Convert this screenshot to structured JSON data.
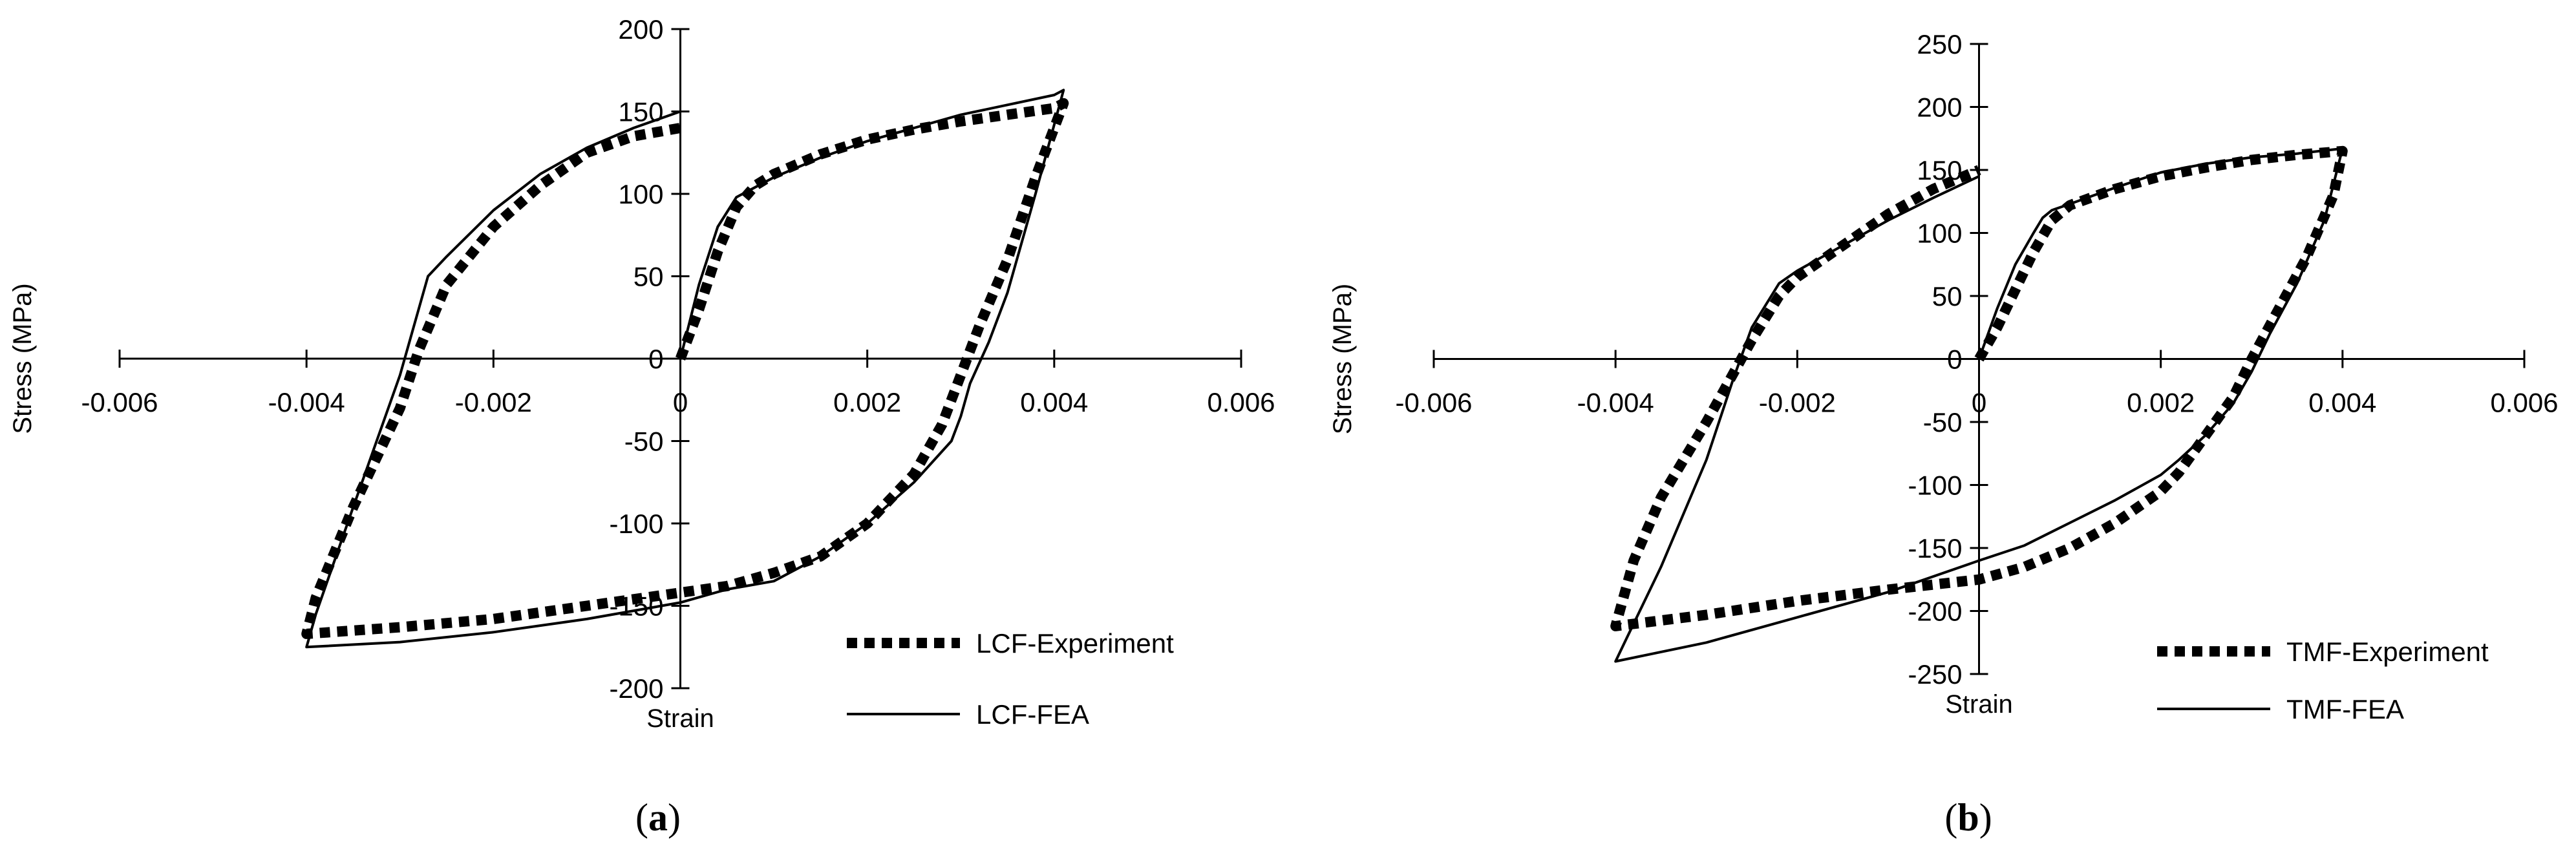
{
  "chart_data": [
    {
      "type": "line",
      "panel_label": "a",
      "xlabel": "Strain",
      "ylabel": "Stress (MPa)",
      "xlim": [
        -0.006,
        0.006
      ],
      "ylim": [
        -200,
        200
      ],
      "x_ticks": [
        "-0.006",
        "-0.004",
        "-0.002",
        "0",
        "0.002",
        "0.004",
        "0.006"
      ],
      "y_ticks": [
        "200",
        "150",
        "100",
        "50",
        "0",
        "-50",
        "-100",
        "-150",
        "-200"
      ],
      "legend": "bottom-right",
      "grid": false,
      "series": [
        {
          "name": "LCF-Experiment",
          "style": "dotted-thick",
          "points": [
            [
              0,
              0
            ],
            [
              0.0002,
              30
            ],
            [
              0.0004,
              65
            ],
            [
              0.0006,
              92
            ],
            [
              0.0008,
              105
            ],
            [
              0.001,
              112
            ],
            [
              0.0015,
              124
            ],
            [
              0.002,
              133
            ],
            [
              0.0025,
              139
            ],
            [
              0.003,
              144
            ],
            [
              0.0035,
              148
            ],
            [
              0.004,
              152
            ],
            [
              0.0041,
              155
            ],
            [
              0.0038,
              110
            ],
            [
              0.0035,
              60
            ],
            [
              0.0032,
              20
            ],
            [
              0.003,
              -10
            ],
            [
              0.0028,
              -40
            ],
            [
              0.0025,
              -70
            ],
            [
              0.002,
              -100
            ],
            [
              0.0015,
              -120
            ],
            [
              0.001,
              -130
            ],
            [
              0.0005,
              -138
            ],
            [
              0,
              -142
            ],
            [
              -0.001,
              -150
            ],
            [
              -0.002,
              -158
            ],
            [
              -0.003,
              -163
            ],
            [
              -0.004,
              -167
            ],
            [
              -0.0039,
              -145
            ],
            [
              -0.0035,
              -90
            ],
            [
              -0.003,
              -30
            ],
            [
              -0.0028,
              5
            ],
            [
              -0.0025,
              45
            ],
            [
              -0.002,
              80
            ],
            [
              -0.0015,
              105
            ],
            [
              -0.001,
              125
            ],
            [
              -0.0005,
              135
            ],
            [
              0,
              140
            ]
          ]
        },
        {
          "name": "LCF-FEA",
          "style": "solid",
          "points": [
            [
              0,
              0
            ],
            [
              0.0002,
              45
            ],
            [
              0.0004,
              80
            ],
            [
              0.0006,
              98
            ],
            [
              0.0008,
              104
            ],
            [
              0.001,
              110
            ],
            [
              0.0015,
              122
            ],
            [
              0.002,
              132
            ],
            [
              0.0025,
              140
            ],
            [
              0.003,
              148
            ],
            [
              0.0035,
              154
            ],
            [
              0.004,
              160
            ],
            [
              0.0041,
              163
            ],
            [
              0.0038,
              100
            ],
            [
              0.0035,
              40
            ],
            [
              0.0033,
              10
            ],
            [
              0.0031,
              -15
            ],
            [
              0.003,
              -35
            ],
            [
              0.0029,
              -50
            ],
            [
              0.0025,
              -75
            ],
            [
              0.002,
              -100
            ],
            [
              0.0015,
              -120
            ],
            [
              0.001,
              -135
            ],
            [
              0.0005,
              -140
            ],
            [
              0,
              -148
            ],
            [
              -0.001,
              -158
            ],
            [
              -0.002,
              -166
            ],
            [
              -0.003,
              -172
            ],
            [
              -0.004,
              -175
            ],
            [
              -0.0039,
              -155
            ],
            [
              -0.0035,
              -90
            ],
            [
              -0.003,
              -10
            ],
            [
              -0.0027,
              50
            ],
            [
              -0.0025,
              62
            ],
            [
              -0.002,
              90
            ],
            [
              -0.0015,
              112
            ],
            [
              -0.001,
              128
            ],
            [
              -0.0005,
              140
            ],
            [
              0,
              150
            ]
          ]
        }
      ]
    },
    {
      "type": "line",
      "panel_label": "b",
      "xlabel": "Strain",
      "ylabel": "Stress (MPa)",
      "xlim": [
        -0.006,
        0.006
      ],
      "ylim": [
        -250,
        250
      ],
      "x_ticks": [
        "-0.006",
        "-0.004",
        "-0.002",
        "0",
        "0.002",
        "0.004",
        "0.006"
      ],
      "y_ticks": [
        "250",
        "200",
        "150",
        "100",
        "50",
        "0",
        "-50",
        "-100",
        "-150",
        "-200",
        "-250"
      ],
      "legend": "bottom-right",
      "grid": false,
      "series": [
        {
          "name": "TMF-Experiment",
          "style": "dotted-thick",
          "points": [
            [
              0,
              0
            ],
            [
              0.0002,
              25
            ],
            [
              0.0004,
              55
            ],
            [
              0.0006,
              85
            ],
            [
              0.0008,
              110
            ],
            [
              0.001,
              122
            ],
            [
              0.0015,
              135
            ],
            [
              0.002,
              145
            ],
            [
              0.0025,
              152
            ],
            [
              0.003,
              158
            ],
            [
              0.0035,
              162
            ],
            [
              0.004,
              165
            ],
            [
              0.0039,
              130
            ],
            [
              0.0036,
              80
            ],
            [
              0.0033,
              40
            ],
            [
              0.003,
              0
            ],
            [
              0.0028,
              -30
            ],
            [
              0.0025,
              -60
            ],
            [
              0.0022,
              -90
            ],
            [
              0.002,
              -105
            ],
            [
              0.0015,
              -130
            ],
            [
              0.001,
              -150
            ],
            [
              0.0005,
              -165
            ],
            [
              0,
              -175
            ],
            [
              -0.001,
              -183
            ],
            [
              -0.002,
              -192
            ],
            [
              -0.003,
              -203
            ],
            [
              -0.004,
              -212
            ],
            [
              -0.0038,
              -160
            ],
            [
              -0.0035,
              -110
            ],
            [
              -0.003,
              -50
            ],
            [
              -0.0025,
              15
            ],
            [
              -0.0022,
              50
            ],
            [
              -0.002,
              65
            ],
            [
              -0.0015,
              90
            ],
            [
              -0.001,
              115
            ],
            [
              -0.0005,
              135
            ],
            [
              0,
              150
            ]
          ]
        },
        {
          "name": "TMF-FEA",
          "style": "solid",
          "points": [
            [
              0,
              0
            ],
            [
              0.0002,
              40
            ],
            [
              0.0004,
              75
            ],
            [
              0.0006,
              100
            ],
            [
              0.0007,
              112
            ],
            [
              0.0008,
              118
            ],
            [
              0.001,
              123
            ],
            [
              0.0015,
              136
            ],
            [
              0.002,
              148
            ],
            [
              0.0025,
              155
            ],
            [
              0.003,
              160
            ],
            [
              0.0035,
              163
            ],
            [
              0.004,
              167
            ],
            [
              0.0038,
              110
            ],
            [
              0.0035,
              60
            ],
            [
              0.0032,
              20
            ],
            [
              0.003,
              -10
            ],
            [
              0.0028,
              -35
            ],
            [
              0.0025,
              -60
            ],
            [
              0.0022,
              -80
            ],
            [
              0.002,
              -92
            ],
            [
              0.0015,
              -112
            ],
            [
              0.001,
              -130
            ],
            [
              0.0005,
              -148
            ],
            [
              0,
              -160
            ],
            [
              -0.001,
              -185
            ],
            [
              -0.002,
              -205
            ],
            [
              -0.003,
              -225
            ],
            [
              -0.004,
              -240
            ],
            [
              -0.0039,
              -225
            ],
            [
              -0.0035,
              -165
            ],
            [
              -0.003,
              -80
            ],
            [
              -0.0027,
              -15
            ],
            [
              -0.0025,
              25
            ],
            [
              -0.0022,
              60
            ],
            [
              -0.002,
              70
            ],
            [
              -0.0015,
              90
            ],
            [
              -0.001,
              110
            ],
            [
              -0.0005,
              128
            ],
            [
              0,
              145
            ]
          ]
        }
      ]
    }
  ]
}
